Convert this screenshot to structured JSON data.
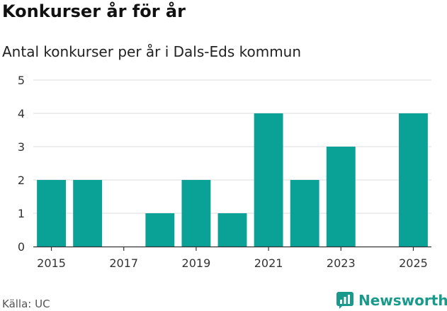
{
  "header": {
    "title": "Konkurser år för år",
    "subtitle": "Antal konkurser per år i Dals-Eds kommun"
  },
  "footer": {
    "source": "Källa: UC",
    "brand": "Newsworthy"
  },
  "colors": {
    "bar": "#0aa197",
    "grid": "#dddddd",
    "axis": "#333333",
    "brand": "#1a9a8c"
  },
  "chart_data": {
    "type": "bar",
    "title": "Konkurser år för år",
    "subtitle": "Antal konkurser per år i Dals-Eds kommun",
    "xlabel": "",
    "ylabel": "",
    "categories": [
      2015,
      2016,
      2017,
      2018,
      2019,
      2020,
      2021,
      2022,
      2023,
      2024,
      2025
    ],
    "values": [
      2,
      2,
      0,
      1,
      2,
      1,
      4,
      2,
      3,
      0,
      4
    ],
    "ylim": [
      0,
      5
    ],
    "y_ticks": [
      0,
      1,
      2,
      3,
      4,
      5
    ],
    "x_tick_labels": [
      "2015",
      "2017",
      "2019",
      "2021",
      "2023",
      "2025"
    ],
    "grid": true,
    "legend": "none"
  }
}
